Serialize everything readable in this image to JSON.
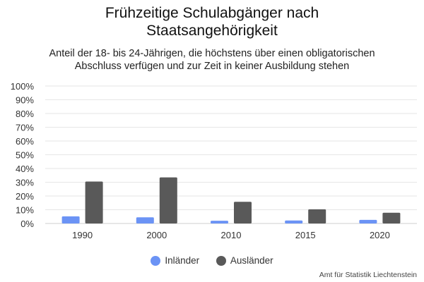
{
  "chart_data": {
    "type": "bar",
    "title_lines": [
      "Frühzeitige Schulabgänger nach",
      "Staatsangehörigkeit"
    ],
    "subtitle_lines": [
      "Anteil der 18- bis 24-Jährigen, die höchstens über einen obligatorischen",
      "Abschluss verfügen und zur Zeit in keiner Ausbildung stehen"
    ],
    "categories": [
      "1990",
      "2000",
      "2010",
      "2015",
      "2020"
    ],
    "series": [
      {
        "name": "Inländer",
        "color": "#6b93f5",
        "values": [
          5.2,
          4.5,
          2.0,
          2.2,
          2.6
        ]
      },
      {
        "name": "Ausländer",
        "color": "#595959",
        "values": [
          30.5,
          33.5,
          15.8,
          10.3,
          7.8
        ]
      }
    ],
    "ylim": [
      0,
      100
    ],
    "yticks": [
      "0%",
      "10%",
      "20%",
      "30%",
      "40%",
      "50%",
      "60%",
      "70%",
      "80%",
      "90%",
      "100%"
    ],
    "grid": true,
    "legend_position": "bottom-center"
  },
  "source": "Amt für Statistik Liechtenstein"
}
